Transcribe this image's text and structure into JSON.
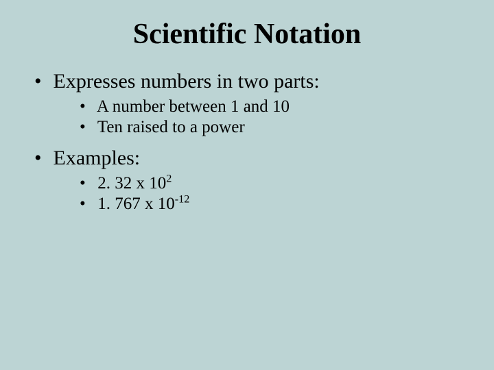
{
  "background_color": "#bcd4d4",
  "text_color": "#000000",
  "font_family": "Times New Roman",
  "title": {
    "text": "Scientific Notation",
    "fontsize": 42,
    "bold": true,
    "align": "center"
  },
  "bullets": {
    "level1_fontsize": 30,
    "level2_fontsize": 25,
    "items": [
      {
        "text": "Expresses numbers in two parts:",
        "sub": [
          {
            "text": "A number between 1 and 10"
          },
          {
            "text": "Ten raised to a power"
          }
        ]
      },
      {
        "text": "Examples:",
        "sub": [
          {
            "base": "2. 32 x 10",
            "exp": "2"
          },
          {
            "base": "1. 767 x 10",
            "exp": "-12"
          }
        ]
      }
    ]
  }
}
